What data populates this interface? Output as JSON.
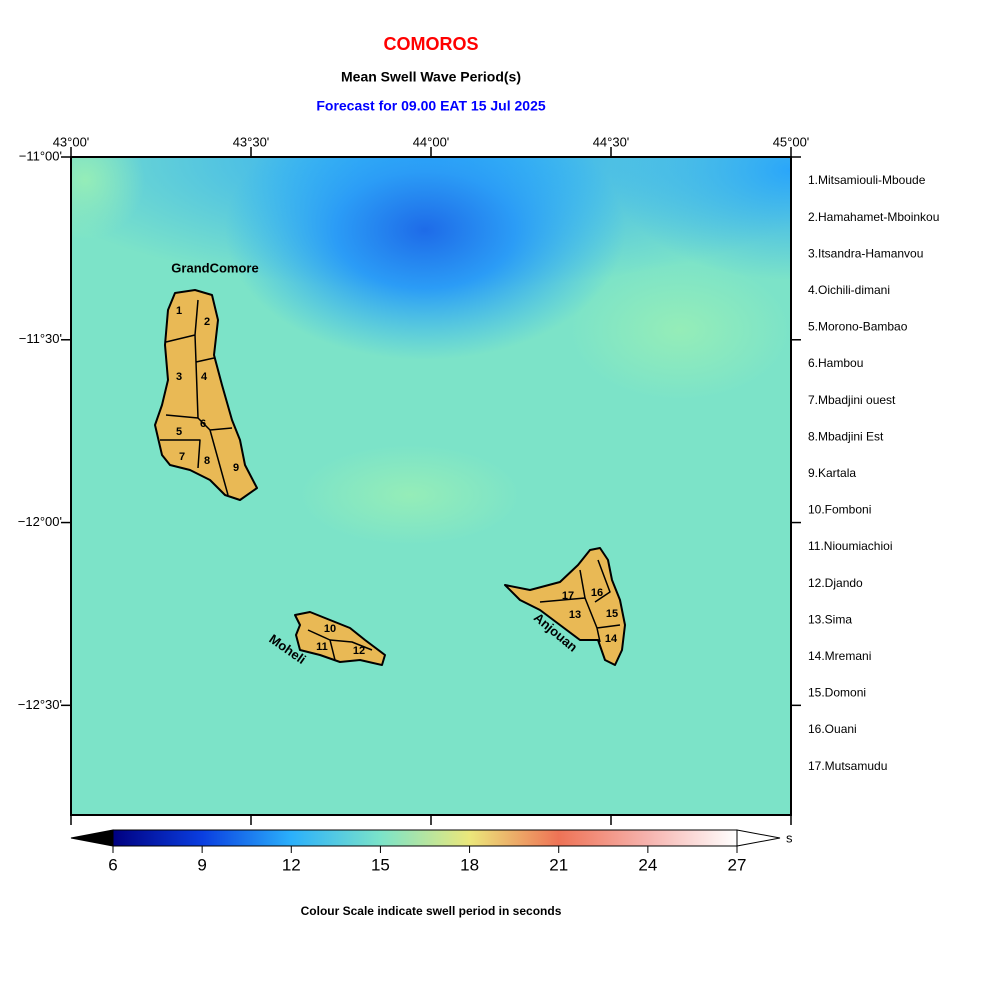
{
  "header": {
    "title": "COMOROS",
    "subtitle": "Mean Swell Wave Period(s)",
    "forecast": "Forecast for  09.00 EAT 15 Jul 2025"
  },
  "map": {
    "xlim": [
      43,
      45
    ],
    "ylim": [
      -12.8,
      -11
    ],
    "xticks": [
      {
        "value": 43,
        "label": "43°00'"
      },
      {
        "value": 43.5,
        "label": "43°30'"
      },
      {
        "value": 44,
        "label": "44°00'"
      },
      {
        "value": 44.5,
        "label": "44°30'"
      },
      {
        "value": 45,
        "label": "45°00'"
      }
    ],
    "yticks": [
      {
        "value": -11,
        "label": "−11°00'"
      },
      {
        "value": -11.5,
        "label": "−11°30'"
      },
      {
        "value": -12,
        "label": "−12°00'"
      },
      {
        "value": -12.5,
        "label": "−12°30'"
      }
    ],
    "islands": [
      "GrandComore",
      "Moheli",
      "Anjouan"
    ],
    "region_labels": [
      "1",
      "2",
      "3",
      "4",
      "5",
      "6",
      "7",
      "8",
      "9",
      "10",
      "11",
      "12",
      "13",
      "14",
      "15",
      "16",
      "17"
    ],
    "regions": [
      "1.Mitsamiouli-Mboude",
      "2.Hamahamet-Mboinkou",
      "3.Itsandra-Hamanvou",
      "4.Oichili-dimani",
      "5.Morono-Bambao",
      "6.Hambou",
      "7.Mbadjini ouest",
      "8.Mbadjini Est",
      "9.Kartala",
      "10.Fomboni",
      "11.Nioumiachioi",
      "12.Djando",
      "13.Sima",
      "14.Mremani",
      "15.Domoni",
      "16.Ouani",
      "17.Mutsamudu"
    ]
  },
  "colorbar": {
    "lim": [
      6,
      27
    ],
    "ticks": [
      6,
      9,
      12,
      15,
      18,
      21,
      24,
      27
    ],
    "colors": [
      "#000080",
      "#0a3ee0",
      "#2bb0fb",
      "#7be3c9",
      "#ebe77b",
      "#ee7356",
      "#f6b3ae",
      "#ffffff"
    ],
    "unit": "s",
    "caption": "Colour Scale indicate swell period in seconds"
  }
}
